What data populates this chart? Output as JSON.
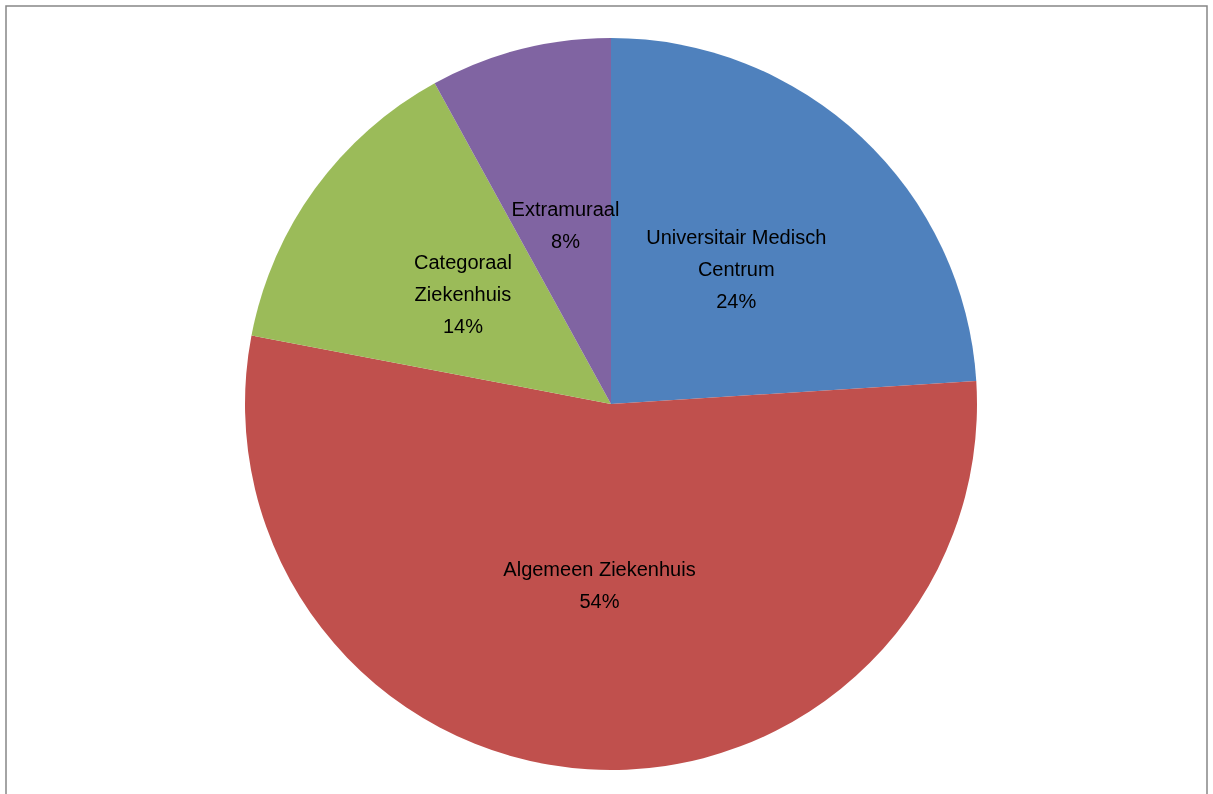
{
  "chart_data": {
    "type": "pie",
    "categories": [
      "Universitair Medisch Centrum",
      "Algemeen Ziekenhuis",
      "Categoraal Ziekenhuis",
      "Extramuraal"
    ],
    "values": [
      24,
      54,
      14,
      8
    ],
    "colors": [
      "#4f81bd",
      "#c0504d",
      "#9bbb59",
      "#8064a2"
    ],
    "value_labels": [
      "24%",
      "54%",
      "14%",
      "8%"
    ]
  }
}
